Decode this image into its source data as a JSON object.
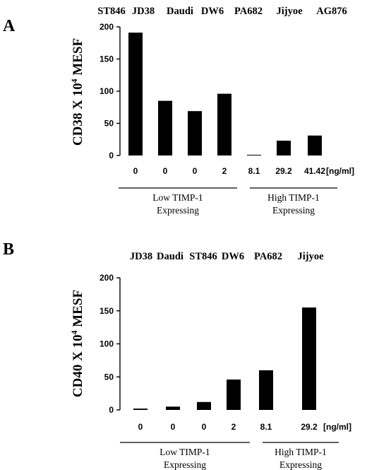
{
  "chart_data": [
    {
      "type": "bar",
      "panel": "A",
      "cell_lines": [
        "ST846",
        "JD38",
        "Daudi",
        "DW6",
        "PA682",
        "Jijyoe",
        "AG876"
      ],
      "categories": [
        "0",
        "0",
        "0",
        "2",
        "8.1",
        "29.2",
        "41.42"
      ],
      "values": [
        191,
        85,
        69,
        96,
        0.5,
        23,
        31
      ],
      "x_unit": "[ng/ml]",
      "ylabel_main": "CD38 X 10",
      "ylabel_sup": "4",
      "ylabel_tail": " MESF",
      "ylim": [
        0,
        200
      ],
      "yticks": [
        0,
        50,
        100,
        150,
        200
      ],
      "groups": [
        {
          "label1": "Low  TIMP-1",
          "label2": "Expressing",
          "start": 0,
          "end": 3
        },
        {
          "label1": "High   TIMP-1",
          "label2": "Expressing",
          "start": 4,
          "end": 6
        }
      ]
    },
    {
      "type": "bar",
      "panel": "B",
      "cell_lines": [
        "JD38",
        "Daudi",
        "ST846",
        "DW6",
        "PA682",
        "Jijyoe"
      ],
      "categories": [
        "0",
        "0",
        "0",
        "2",
        "8.1",
        "29.2"
      ],
      "values": [
        2,
        5,
        12,
        46,
        60,
        155
      ],
      "x_unit": "[ng/ml]",
      "ylabel_main": "CD40 X 10",
      "ylabel_sup": "4",
      "ylabel_tail": " MESF",
      "ylim": [
        0,
        200
      ],
      "yticks": [
        0,
        50,
        100,
        150,
        200
      ],
      "groups": [
        {
          "label1": "Low TIMP-1",
          "label2": "Expressing",
          "start": 0,
          "end": 3
        },
        {
          "label1": "High   TIMP-1",
          "label2": "Expressing",
          "start": 4,
          "end": 5
        }
      ]
    }
  ]
}
